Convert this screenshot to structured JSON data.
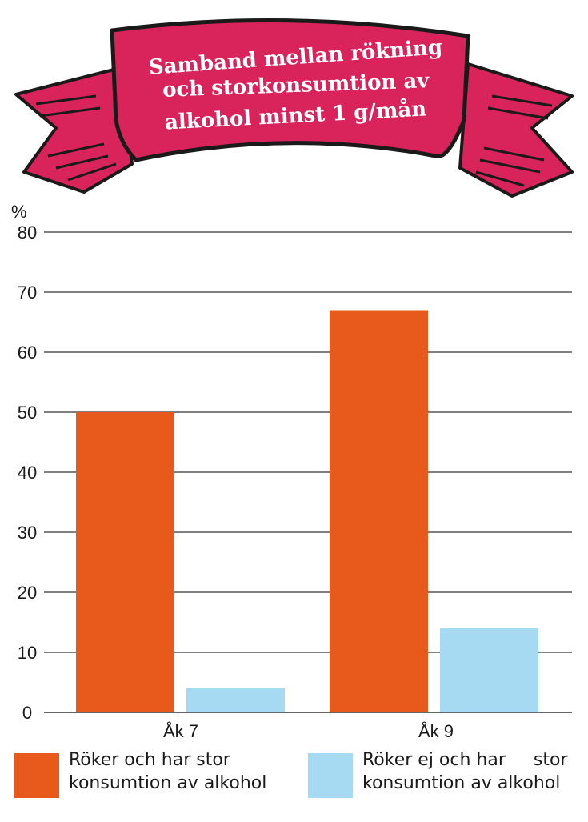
{
  "chart_data": {
    "type": "bar",
    "title": [
      "Samband mellan rökning",
      "och storkonsumtion av",
      "alkohol minst 1 g/mån"
    ],
    "ylabel": "%",
    "xlabel": "",
    "ylim": [
      0,
      80
    ],
    "yticks": [
      0,
      10,
      20,
      30,
      40,
      50,
      60,
      70,
      80
    ],
    "grid": true,
    "categories": [
      "Åk 7",
      "Åk 9"
    ],
    "series": [
      {
        "name_lines": [
          "Röker och har stor",
          "konsumtion av alkohol"
        ],
        "color": "#e85a1b",
        "values": [
          50,
          67
        ]
      },
      {
        "name_lines": [
          "Röker ej och har     stor",
          "konsumtion av alkohol"
        ],
        "color": "#a6daf3",
        "values": [
          4,
          14
        ]
      }
    ],
    "legend_position": "bottom",
    "banner_color": "#d8235b"
  }
}
